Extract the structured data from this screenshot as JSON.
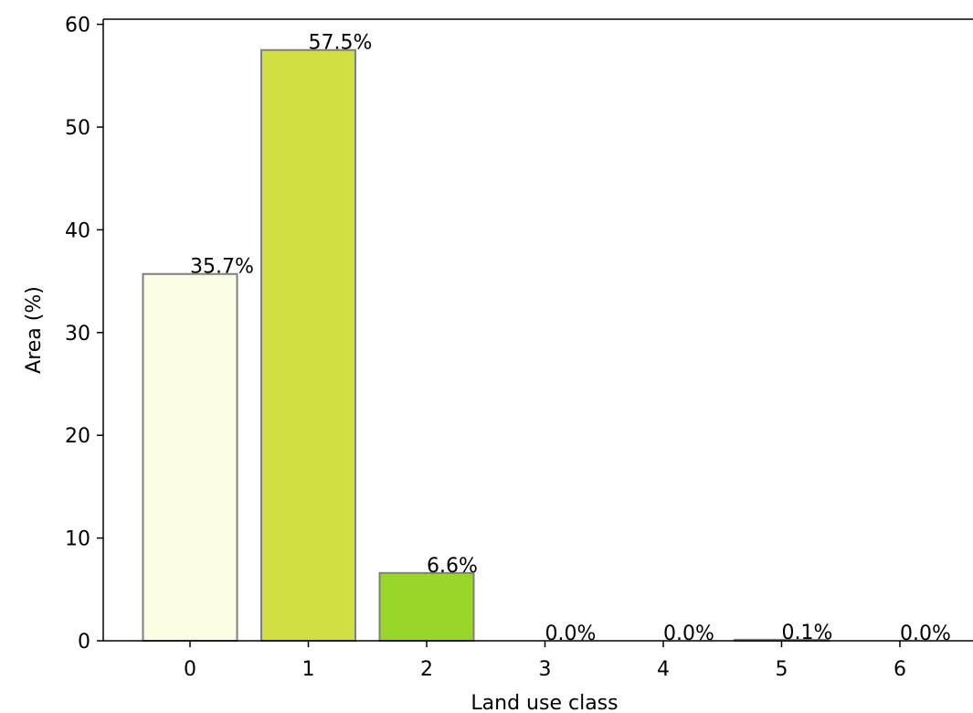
{
  "chart_data": {
    "type": "bar",
    "title": "",
    "xlabel": "Land use class",
    "ylabel": "Area (%)",
    "categories": [
      "0",
      "1",
      "2",
      "3",
      "4",
      "5",
      "6"
    ],
    "values": [
      35.7,
      57.5,
      6.6,
      0.0,
      0.0,
      0.1,
      0.0
    ],
    "data_labels": [
      "35.7%",
      "57.5%",
      "6.6%",
      "0.0%",
      "0.0%",
      "0.1%",
      "0.0%"
    ],
    "bar_colors": [
      "#fdfde6",
      "#d0df42",
      "#98d62a",
      "#4daa22",
      "#2a8a22",
      "#1e6a1e",
      "#0f4f1a"
    ],
    "bar_edge_color": "#808080",
    "ylim": [
      0,
      60.5
    ],
    "yticks": [
      0,
      10,
      20,
      30,
      40,
      50,
      60
    ],
    "grid": false,
    "legend": "none"
  }
}
